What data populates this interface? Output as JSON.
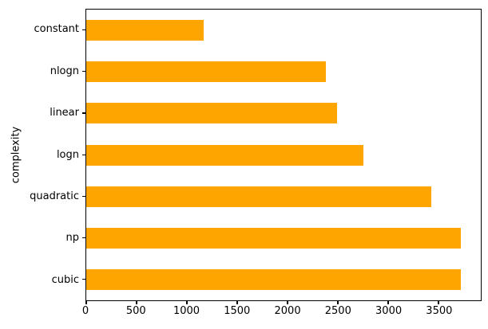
{
  "chart_data": {
    "type": "bar",
    "orientation": "horizontal",
    "title": "",
    "xlabel": "",
    "ylabel": "complexity",
    "categories": [
      "constant",
      "nlogn",
      "linear",
      "logn",
      "quadratic",
      "np",
      "cubic"
    ],
    "values": [
      1170,
      2380,
      2490,
      2750,
      3430,
      3725,
      3725
    ],
    "xticks": [
      0,
      500,
      1000,
      1500,
      2000,
      2500,
      3000,
      3500
    ],
    "xlim": [
      0,
      3920
    ],
    "bar_color": "#FFA500",
    "axis_color": "#000000",
    "background_color": "#FFFFFF",
    "grid": false,
    "legend": false
  }
}
